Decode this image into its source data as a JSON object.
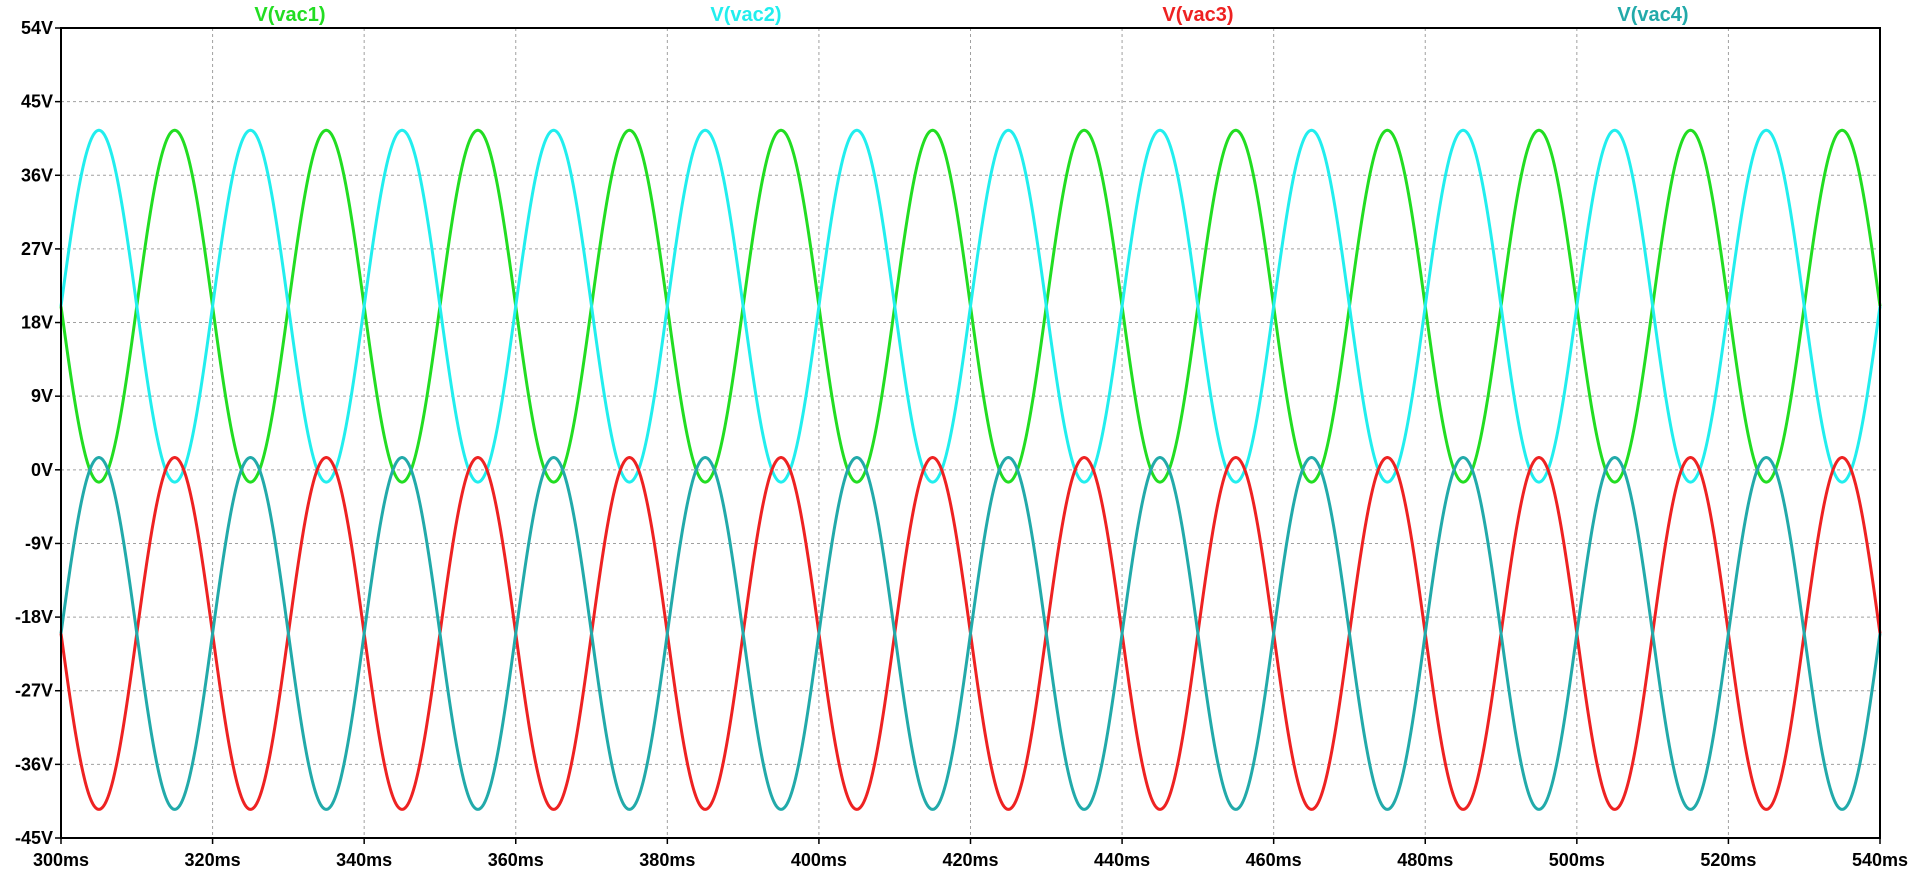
{
  "chart_data": {
    "type": "line",
    "grid": true,
    "legend_placement": "top",
    "x_unit": "ms",
    "y_unit": "V",
    "xlim": [
      300,
      540
    ],
    "ylim": [
      -45,
      54
    ],
    "x_ticks": [
      300,
      320,
      340,
      360,
      380,
      400,
      420,
      440,
      460,
      480,
      500,
      520,
      540
    ],
    "x_tick_labels": [
      "300ms",
      "320ms",
      "340ms",
      "360ms",
      "380ms",
      "400ms",
      "420ms",
      "440ms",
      "460ms",
      "480ms",
      "500ms",
      "520ms",
      "540ms"
    ],
    "y_ticks": [
      54,
      45,
      36,
      27,
      18,
      9,
      0,
      -9,
      -18,
      -27,
      -36,
      -45
    ],
    "y_tick_labels": [
      "54V",
      "45V",
      "36V",
      "27V",
      "18V",
      "9V",
      "0V",
      "-9V",
      "-18V",
      "-27V",
      "-36V",
      "-45V"
    ],
    "series": [
      {
        "name": "V(vac1)",
        "color": "#22dd22",
        "description": "sine wave, 50 Hz, peak 41.5V, trough -1.5V, offset 20V, value 20V and falling at 300ms",
        "frequency_hz": 50,
        "offset_v": 20,
        "amplitude_v": 21.5,
        "phase_deg": 180
      },
      {
        "name": "V(vac2)",
        "color": "#22eeee",
        "description": "sine wave, 50 Hz, peak 41.5V, trough -1.5V, offset 20V, value 20V and rising at 300ms",
        "frequency_hz": 50,
        "offset_v": 20,
        "amplitude_v": 21.5,
        "phase_deg": 0
      },
      {
        "name": "V(vac3)",
        "color": "#ee2222",
        "description": "sine wave, 50 Hz, peak 1.5V, trough -41.5V, offset -20V, value -20V and falling at 300ms",
        "frequency_hz": 50,
        "offset_v": -20,
        "amplitude_v": 21.5,
        "phase_deg": 180
      },
      {
        "name": "V(vac4)",
        "color": "#22aaaa",
        "description": "sine wave, 50 Hz, peak 1.5V, trough -41.5V, offset -20V, value -20V and rising at 300ms",
        "frequency_hz": 50,
        "offset_v": -20,
        "amplitude_v": 21.5,
        "phase_deg": 0
      }
    ]
  }
}
